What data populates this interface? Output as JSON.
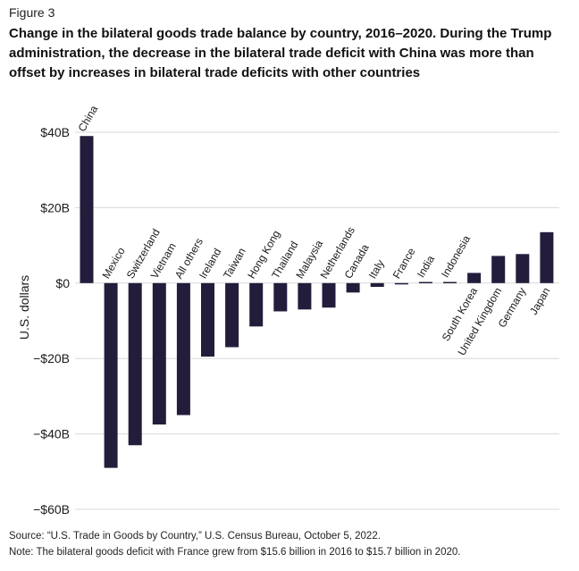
{
  "figure_label": "Figure 3",
  "title": "Change in the bilateral goods trade balance by country, 2016–2020. During the Trump administration, the decrease in the bilateral trade deficit with China was more than offset by increases in bilateral trade deficits with other countries",
  "source": "Source: “U.S. Trade in Goods by Country,” U.S. Census Bureau, October 5, 2022.",
  "note": "Note: The bilateral goods deficit with France grew from $15.6 billion in 2016 to $15.7 billion in 2020.",
  "colors": {
    "bar": "#231d3b",
    "grid": "#d8d8d8",
    "text": "#1a1a1a"
  },
  "chart_data": {
    "type": "bar",
    "ylabel": "U.S. dollars",
    "ylim": [
      -60,
      40
    ],
    "yticks": [
      40,
      20,
      0,
      -20,
      -40,
      -60
    ],
    "ytick_labels": [
      "$40B",
      "$20B",
      "$0",
      "−$20B",
      "−$40B",
      "−$60B"
    ],
    "grid": true,
    "categories": [
      "China",
      "Mexico",
      "Switzerland",
      "Vietnam",
      "All others",
      "Ireland",
      "Taiwan",
      "Hong Kong",
      "Thailand",
      "Malaysia",
      "Netherlands",
      "Canada",
      "Italy",
      "France",
      "India",
      "Indonesia",
      "South Korea",
      "United Kingdom",
      "Germany",
      "Japan"
    ],
    "values": [
      39,
      -49,
      -43,
      -37.5,
      -35,
      -19.5,
      -17,
      -11.5,
      -7.5,
      -7,
      -6.5,
      -2.5,
      -1,
      -0.1,
      0.3,
      0.3,
      2.7,
      7.2,
      7.7,
      13.5
    ]
  }
}
